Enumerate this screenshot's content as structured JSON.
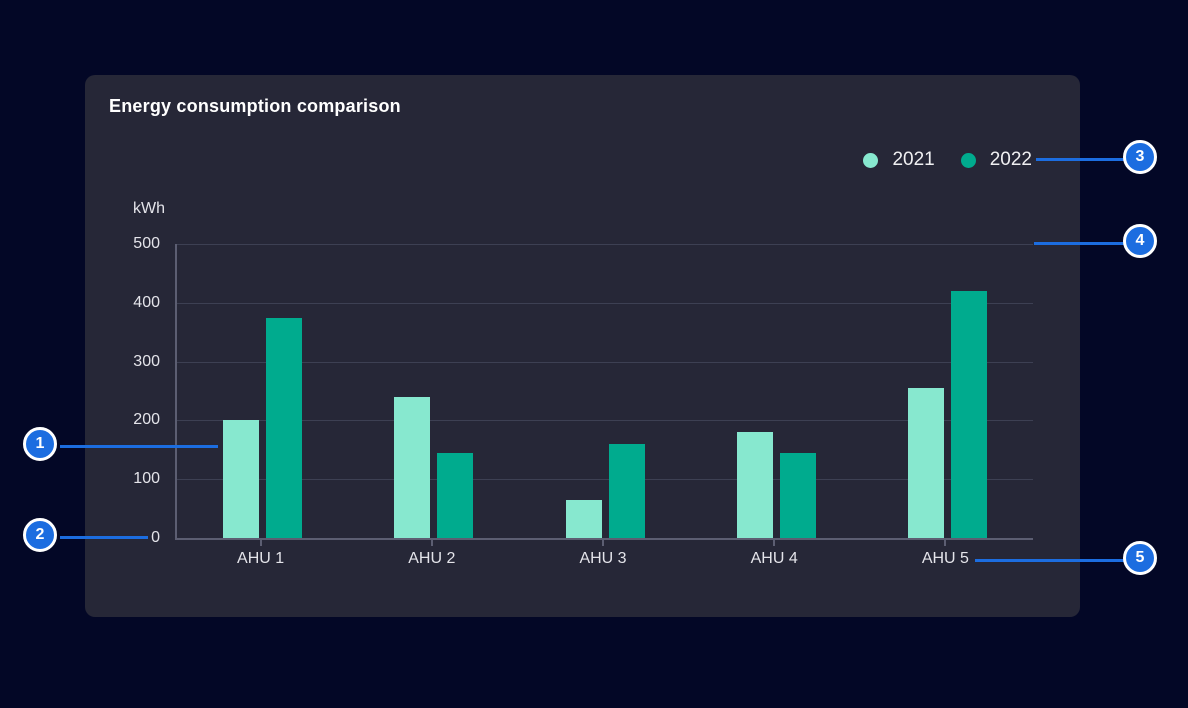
{
  "page": {
    "background": "#030726"
  },
  "card": {
    "title": "Energy consumption comparison",
    "background": "#262737"
  },
  "legend": {
    "items": [
      {
        "label": "2021",
        "color": "#87e8cf"
      },
      {
        "label": "2022",
        "color": "#00ab8e"
      }
    ]
  },
  "chart_data": {
    "type": "bar",
    "title": "Energy consumption comparison",
    "ylabel": "kWh",
    "categories": [
      "AHU 1",
      "AHU 2",
      "AHU 3",
      "AHU 4",
      "AHU 5"
    ],
    "series": [
      {
        "name": "2021",
        "color": "#87e8cf",
        "values": [
          200,
          240,
          65,
          180,
          255
        ]
      },
      {
        "name": "2022",
        "color": "#00ab8e",
        "values": [
          375,
          145,
          160,
          145,
          420
        ]
      }
    ],
    "ylim": [
      0,
      500
    ],
    "yticks": [
      0,
      100,
      200,
      300,
      400,
      500
    ],
    "grid": true,
    "legend_position": "top-right"
  },
  "callouts": [
    {
      "label": "1"
    },
    {
      "label": "2"
    },
    {
      "label": "3"
    },
    {
      "label": "4"
    },
    {
      "label": "5"
    }
  ],
  "colors": {
    "accent_blue": "#1c6de0",
    "grid": "#3d4053",
    "axis": "#5c5e72",
    "label_text": "#e4e4ea"
  }
}
